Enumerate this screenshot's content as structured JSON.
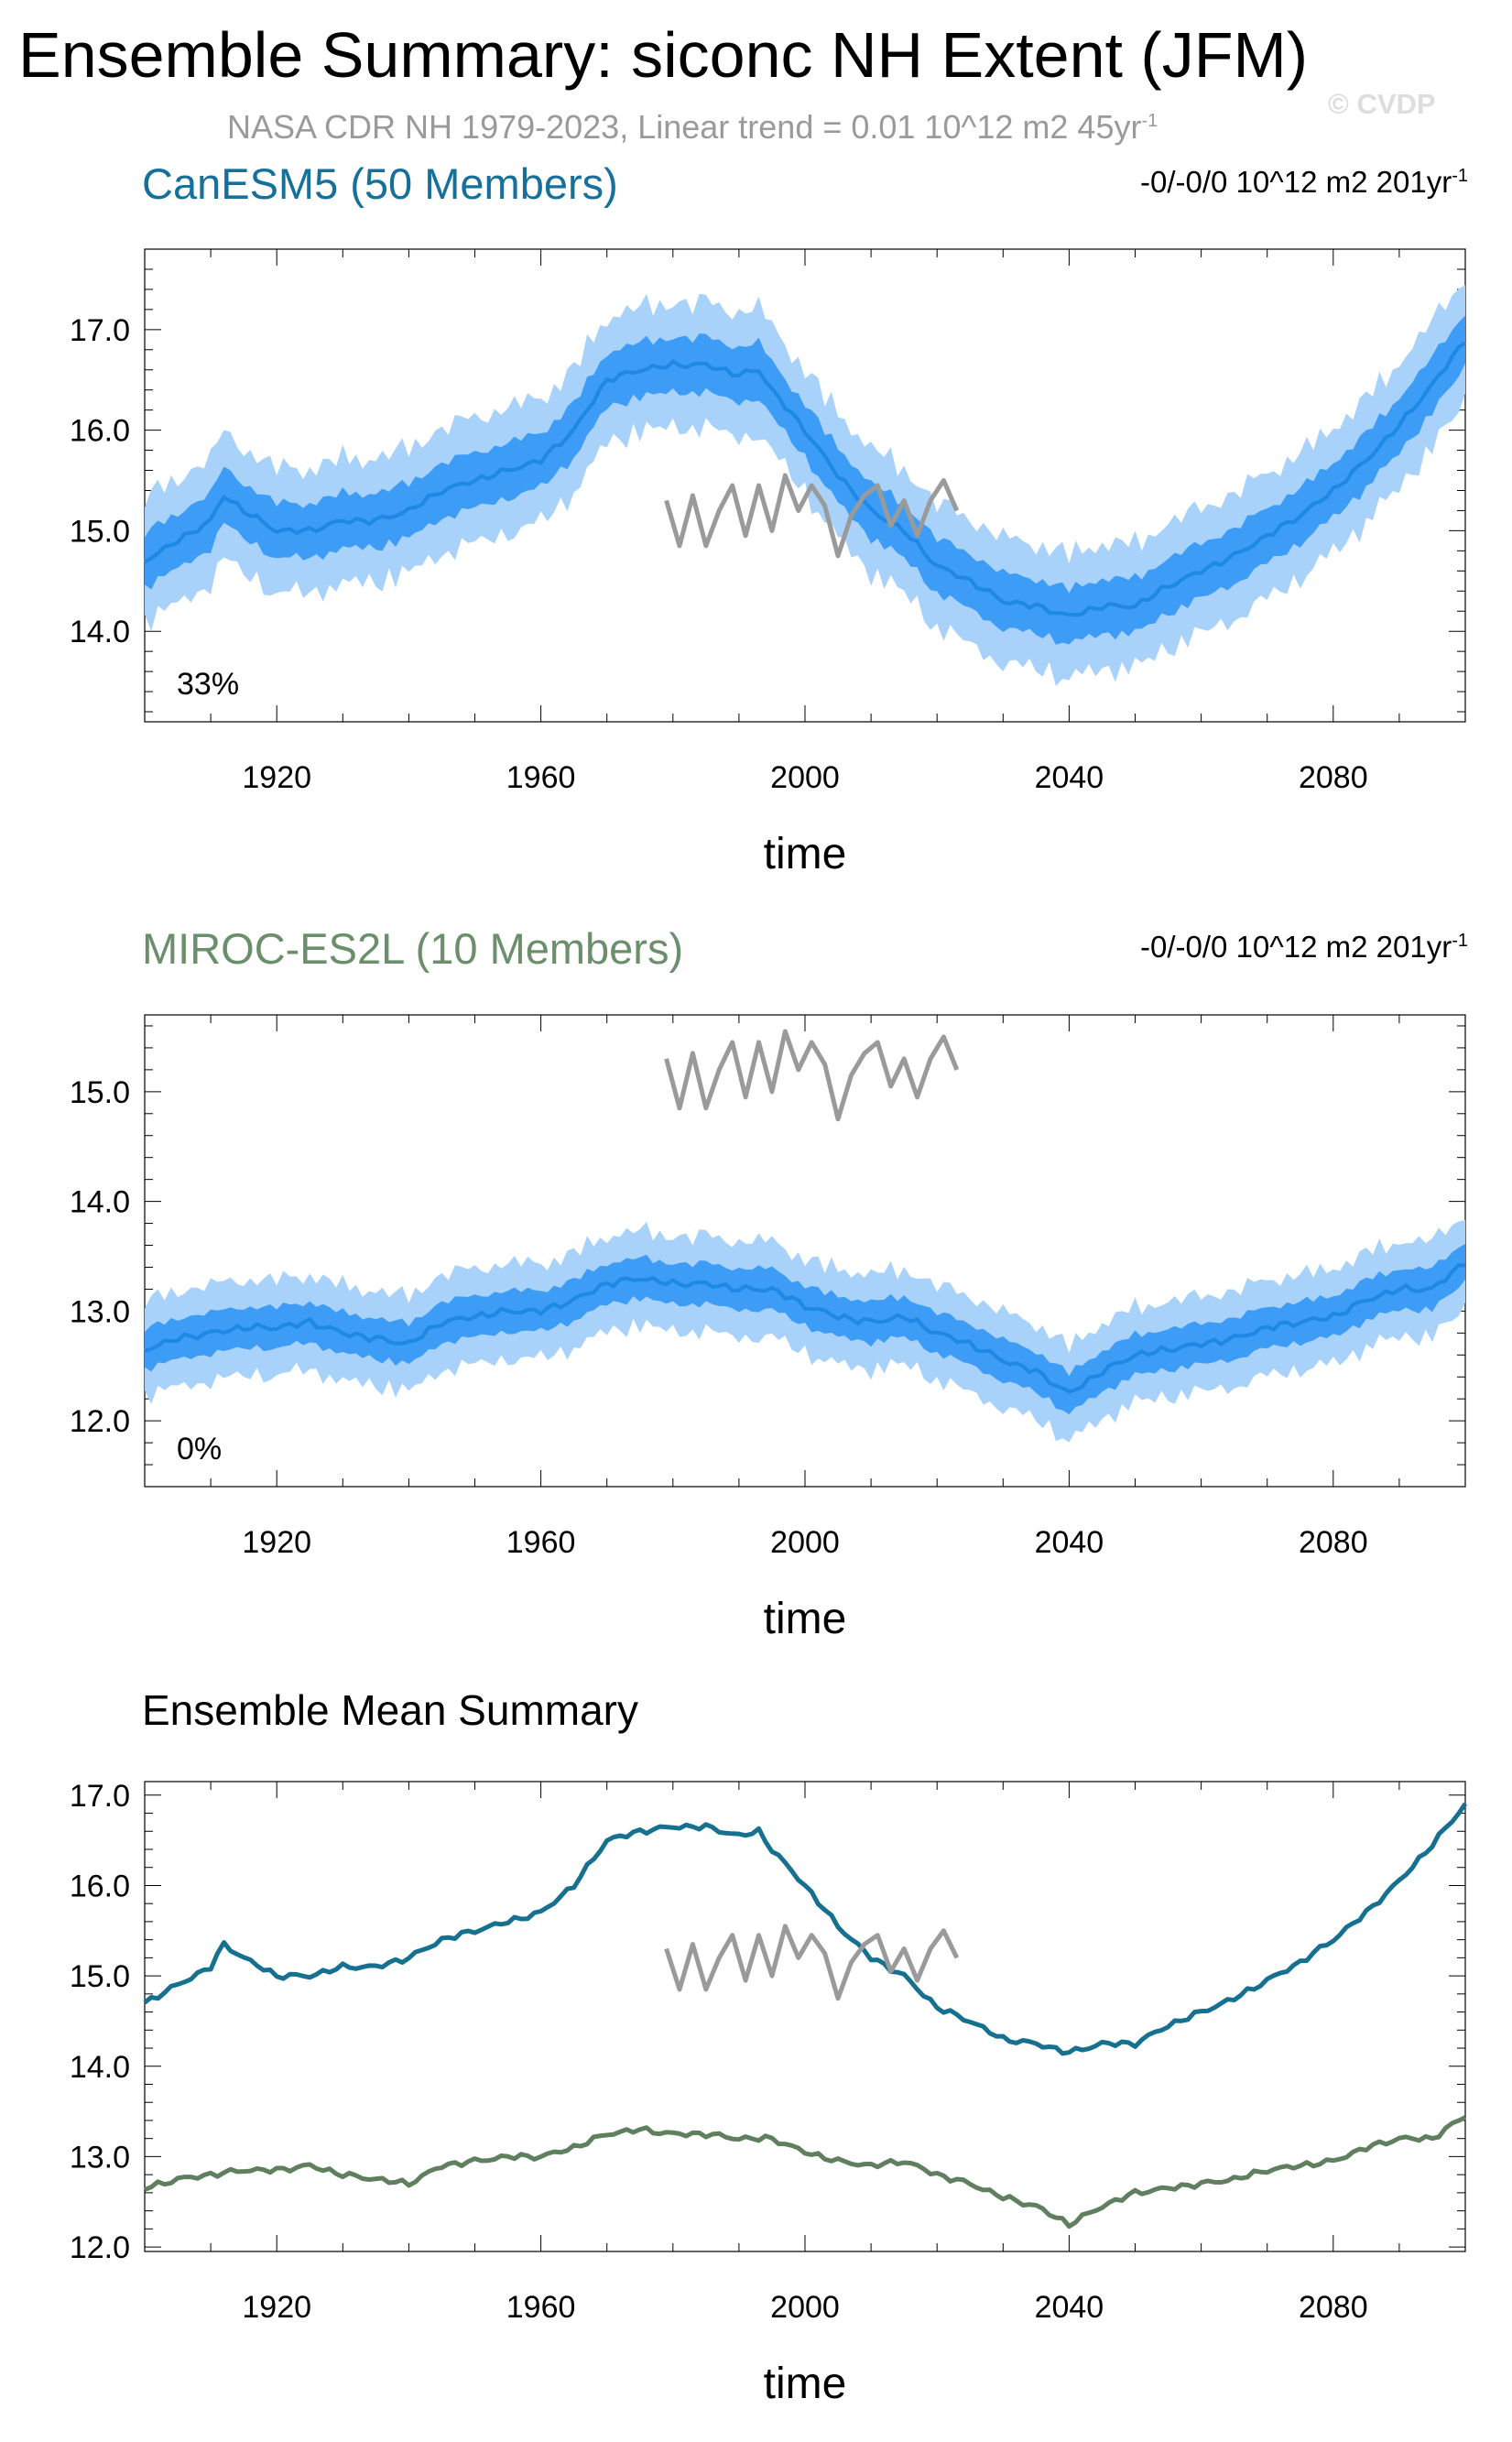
{
  "title": "Ensemble Summary: siconc NH Extent (JFM)",
  "subtitle": {
    "text": "NASA CDR NH 1979-2023, Linear trend = 0.01 10^12 m2 45yr",
    "sup": "-1"
  },
  "watermark": "© CVDP",
  "colors": {
    "canesm_line": "#1e88e5",
    "canesm_inner": "#3d9cf5",
    "canesm_outer": "#a9d2fb",
    "canesm_mean": "#16708f",
    "miroc_title": "#6a8f6a",
    "miroc_mean": "#5f7f5f",
    "obs": "#9a9a9a"
  },
  "chart_data": [
    {
      "type": "area",
      "title": "CanESM5 (50 Members)",
      "trend": {
        "text": "-0/-0/0 10^12 m2 201yr",
        "sup": "-1"
      },
      "annotation": "33%",
      "xlabel": "time",
      "xlim": [
        1900,
        2100
      ],
      "ylim": [
        13.1,
        17.8
      ],
      "xticks": [
        "1920",
        "1960",
        "2000",
        "2040",
        "2080"
      ],
      "yticks": [
        "14.0",
        "15.0",
        "16.0",
        "17.0"
      ],
      "ensemble_mean": {
        "x": [
          1900,
          1905,
          1910,
          1912,
          1915,
          1920,
          1925,
          1930,
          1935,
          1940,
          1945,
          1950,
          1955,
          1960,
          1965,
          1970,
          1975,
          1980,
          1985,
          1990,
          1993,
          1995,
          2000,
          2005,
          2010,
          2015,
          2020,
          2025,
          2030,
          2035,
          2040,
          2045,
          2050,
          2055,
          2060,
          2065,
          2070,
          2075,
          2080,
          2085,
          2090,
          2095,
          2100
        ],
        "y": [
          14.7,
          14.9,
          15.1,
          15.35,
          15.2,
          15.0,
          15.0,
          15.1,
          15.1,
          15.2,
          15.4,
          15.5,
          15.6,
          15.7,
          16.0,
          16.5,
          16.6,
          16.65,
          16.65,
          16.55,
          16.6,
          16.4,
          16.0,
          15.55,
          15.2,
          15.0,
          14.65,
          14.5,
          14.3,
          14.25,
          14.15,
          14.25,
          14.25,
          14.45,
          14.6,
          14.75,
          14.95,
          15.15,
          15.4,
          15.7,
          16.05,
          16.45,
          16.9
        ]
      },
      "band_inner_halfwidth": 0.22,
      "band_outer_halfwidth": 0.5,
      "observations": {
        "x": [
          1979,
          1981,
          1983,
          1985,
          1987,
          1989,
          1991,
          1993,
          1995,
          1997,
          1999,
          2001,
          2003,
          2005,
          2007,
          2009,
          2011,
          2013,
          2015,
          2017,
          2019,
          2021,
          2023
        ],
        "y": [
          15.3,
          14.85,
          15.35,
          14.85,
          15.2,
          15.45,
          14.95,
          15.45,
          15.0,
          15.55,
          15.2,
          15.45,
          15.25,
          14.75,
          15.15,
          15.35,
          15.45,
          15.05,
          15.3,
          14.95,
          15.3,
          15.5,
          15.2
        ]
      }
    },
    {
      "type": "area",
      "title": "MIROC-ES2L (10 Members)",
      "trend": {
        "text": "-0/-0/0 10^12 m2 201yr",
        "sup": "-1"
      },
      "annotation": "0%",
      "xlabel": "time",
      "xlim": [
        1900,
        2100
      ],
      "ylim": [
        11.4,
        15.7
      ],
      "xticks": [
        "1920",
        "1960",
        "2000",
        "2040",
        "2080"
      ],
      "yticks": [
        "12.0",
        "13.0",
        "14.0",
        "15.0"
      ],
      "ensemble_mean": {
        "x": [
          1900,
          1905,
          1910,
          1915,
          1920,
          1925,
          1930,
          1935,
          1940,
          1945,
          1950,
          1955,
          1960,
          1965,
          1970,
          1975,
          1980,
          1985,
          1990,
          1995,
          2000,
          2005,
          2010,
          2015,
          2020,
          2025,
          2030,
          2035,
          2040,
          2045,
          2050,
          2055,
          2060,
          2065,
          2070,
          2075,
          2080,
          2085,
          2090,
          2095,
          2100
        ],
        "y": [
          12.65,
          12.75,
          12.8,
          12.85,
          12.85,
          12.9,
          12.8,
          12.75,
          12.7,
          12.9,
          12.95,
          13.0,
          13.0,
          13.1,
          13.25,
          13.3,
          13.25,
          13.25,
          13.2,
          13.2,
          13.05,
          12.95,
          12.9,
          12.95,
          12.8,
          12.7,
          12.55,
          12.45,
          12.25,
          12.45,
          12.6,
          12.65,
          12.7,
          12.75,
          12.85,
          12.9,
          12.95,
          13.1,
          13.2,
          13.2,
          13.45
        ]
      },
      "band_inner_halfwidth": 0.15,
      "band_outer_halfwidth": 0.35,
      "observations": {
        "x": [
          1979,
          1981,
          1983,
          1985,
          1987,
          1989,
          1991,
          1993,
          1995,
          1997,
          1999,
          2001,
          2003,
          2005,
          2007,
          2009,
          2011,
          2013,
          2015,
          2017,
          2019,
          2021,
          2023
        ],
        "y": [
          15.3,
          14.85,
          15.35,
          14.85,
          15.2,
          15.45,
          14.95,
          15.45,
          15.0,
          15.55,
          15.2,
          15.45,
          15.25,
          14.75,
          15.15,
          15.35,
          15.45,
          15.05,
          15.3,
          14.95,
          15.3,
          15.5,
          15.2
        ]
      }
    },
    {
      "type": "line",
      "title": "Ensemble Mean Summary",
      "xlabel": "time",
      "xlim": [
        1900,
        2100
      ],
      "ylim": [
        11.95,
        17.15
      ],
      "xticks": [
        "1920",
        "1960",
        "2000",
        "2040",
        "2080"
      ],
      "yticks": [
        "12.0",
        "13.0",
        "14.0",
        "15.0",
        "16.0",
        "17.0"
      ],
      "series": [
        {
          "x": [
            1900,
            1905,
            1910,
            1912,
            1915,
            1920,
            1925,
            1930,
            1935,
            1940,
            1945,
            1950,
            1955,
            1960,
            1965,
            1970,
            1975,
            1980,
            1985,
            1990,
            1993,
            1995,
            2000,
            2005,
            2010,
            2015,
            2020,
            2025,
            2030,
            2035,
            2040,
            2045,
            2050,
            2055,
            2060,
            2065,
            2070,
            2075,
            2080,
            2085,
            2090,
            2095,
            2100
          ],
          "y": [
            14.7,
            14.9,
            15.1,
            15.35,
            15.2,
            15.0,
            15.0,
            15.1,
            15.1,
            15.2,
            15.4,
            15.5,
            15.6,
            15.7,
            16.0,
            16.5,
            16.6,
            16.65,
            16.65,
            16.55,
            16.6,
            16.4,
            16.0,
            15.55,
            15.2,
            15.0,
            14.65,
            14.5,
            14.3,
            14.25,
            14.15,
            14.25,
            14.25,
            14.45,
            14.6,
            14.75,
            14.95,
            15.15,
            15.4,
            15.7,
            16.05,
            16.45,
            16.9
          ]
        },
        {
          "x": [
            1900,
            1905,
            1910,
            1915,
            1920,
            1925,
            1930,
            1935,
            1940,
            1945,
            1950,
            1955,
            1960,
            1965,
            1970,
            1975,
            1980,
            1985,
            1990,
            1995,
            2000,
            2005,
            2010,
            2015,
            2020,
            2025,
            2030,
            2035,
            2040,
            2045,
            2050,
            2055,
            2060,
            2065,
            2070,
            2075,
            2080,
            2085,
            2090,
            2095,
            2100
          ],
          "y": [
            12.65,
            12.75,
            12.8,
            12.85,
            12.85,
            12.9,
            12.8,
            12.75,
            12.7,
            12.9,
            12.95,
            13.0,
            13.0,
            13.1,
            13.25,
            13.3,
            13.25,
            13.25,
            13.2,
            13.2,
            13.05,
            12.95,
            12.9,
            12.95,
            12.8,
            12.7,
            12.55,
            12.45,
            12.25,
            12.45,
            12.6,
            12.65,
            12.7,
            12.75,
            12.85,
            12.9,
            12.95,
            13.1,
            13.2,
            13.2,
            13.45
          ]
        },
        {
          "x": [
            1979,
            1981,
            1983,
            1985,
            1987,
            1989,
            1991,
            1993,
            1995,
            1997,
            1999,
            2001,
            2003,
            2005,
            2007,
            2009,
            2011,
            2013,
            2015,
            2017,
            2019,
            2021,
            2023
          ],
          "y": [
            15.3,
            14.85,
            15.35,
            14.85,
            15.2,
            15.45,
            14.95,
            15.45,
            15.0,
            15.55,
            15.2,
            15.45,
            15.25,
            14.75,
            15.15,
            15.35,
            15.45,
            15.05,
            15.3,
            14.95,
            15.3,
            15.5,
            15.2
          ]
        }
      ]
    }
  ]
}
